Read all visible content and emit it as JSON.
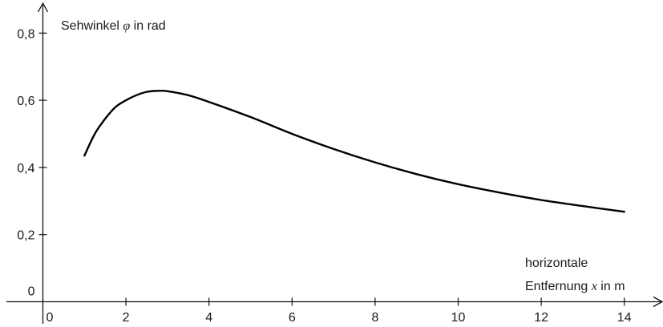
{
  "chart_data": {
    "type": "line",
    "title": "",
    "ylabel": {
      "before": "Sehwinkel ",
      "symbol": "φ",
      "after": " in rad"
    },
    "xlabel": {
      "line1": "horizontale",
      "line2_before": "Entfernung ",
      "symbol": "x",
      "line2_after": " in m"
    },
    "xlim": [
      0,
      15
    ],
    "ylim": [
      0,
      0.85
    ],
    "x_ticks": [
      {
        "value": 0,
        "label": "0"
      },
      {
        "value": 2,
        "label": "2"
      },
      {
        "value": 4,
        "label": "4"
      },
      {
        "value": 6,
        "label": "6"
      },
      {
        "value": 8,
        "label": "8"
      },
      {
        "value": 10,
        "label": "10"
      },
      {
        "value": 12,
        "label": "12"
      },
      {
        "value": 14,
        "label": "14"
      }
    ],
    "y_ticks": [
      {
        "value": 0,
        "label": "0"
      },
      {
        "value": 0.2,
        "label": "0,2"
      },
      {
        "value": 0.4,
        "label": "0,4"
      },
      {
        "value": 0.6,
        "label": "0,6"
      },
      {
        "value": 0.8,
        "label": "0,8"
      }
    ],
    "grid": false,
    "legend": "none",
    "series": [
      {
        "color": "#000000",
        "x": [
          1,
          1.25,
          1.5,
          1.75,
          2,
          2.25,
          2.5,
          2.75,
          3,
          3.5,
          4,
          5,
          6,
          7,
          8,
          9,
          10,
          11,
          12,
          13,
          14
        ],
        "y": [
          0.435,
          0.5,
          0.545,
          0.58,
          0.6,
          0.615,
          0.625,
          0.628,
          0.627,
          0.615,
          0.595,
          0.55,
          0.5,
          0.455,
          0.415,
          0.38,
          0.35,
          0.325,
          0.303,
          0.285,
          0.268
        ]
      }
    ]
  }
}
